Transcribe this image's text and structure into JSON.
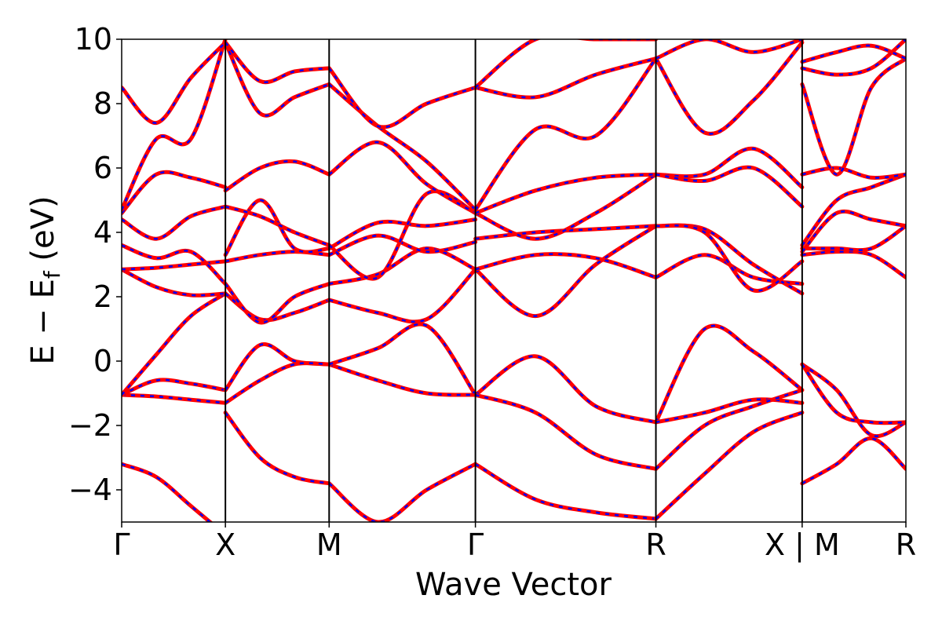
{
  "chart_data": {
    "type": "line",
    "title": "",
    "xlabel": "Wave Vector",
    "ylabel": "E − E",
    "ylabel_subscript": "f",
    "ylabel_unit": " (eV)",
    "ylim": [
      -5,
      10
    ],
    "yticks": [
      -4,
      -2,
      0,
      2,
      4,
      6,
      8,
      10
    ],
    "ytick_labels": [
      "−4",
      "−2",
      "0",
      "2",
      "4",
      "6",
      "8",
      "10"
    ],
    "xlim": [
      0,
      7.56
    ],
    "kpoints": [
      {
        "label": "Γ",
        "x": 0
      },
      {
        "label": "X",
        "x": 1
      },
      {
        "label": "M",
        "x": 2
      },
      {
        "label": "Γ",
        "x": 3.41
      },
      {
        "label": "R",
        "x": 5.15
      },
      {
        "label": "X | M",
        "x": 6.56
      },
      {
        "label": "R",
        "x": 7.56
      }
    ],
    "grid": false,
    "legend": "none",
    "series_styles": [
      {
        "color": "#ff0000",
        "style": "solid"
      },
      {
        "color": "#0000ff",
        "style": "dashed"
      }
    ],
    "segments": [
      {
        "x0": 0,
        "x1": 1,
        "bands": [
          [
            -3.2,
            -3.6,
            -4.5,
            -5.4
          ],
          [
            -1.05,
            -1.1,
            -1.2,
            -1.3
          ],
          [
            -1.05,
            -0.6,
            -0.7,
            -0.9
          ],
          [
            -1.05,
            0.2,
            1.4,
            2.1
          ],
          [
            2.85,
            2.3,
            2.05,
            2.1
          ],
          [
            2.85,
            2.9,
            3.0,
            3.1
          ],
          [
            3.6,
            3.2,
            3.4,
            2.4
          ],
          [
            4.4,
            3.8,
            4.5,
            4.8
          ],
          [
            4.6,
            5.8,
            5.7,
            5.4
          ],
          [
            4.7,
            6.9,
            6.9,
            10.0
          ],
          [
            8.5,
            7.4,
            8.8,
            9.9
          ]
        ]
      },
      {
        "x0": 1,
        "x1": 2,
        "bands": [
          [
            -1.6,
            -3.0,
            -3.6,
            -3.8
          ],
          [
            -0.9,
            0.5,
            0.0,
            -0.1
          ],
          [
            -1.3,
            -0.6,
            -0.1,
            -0.1
          ],
          [
            2.1,
            1.3,
            1.5,
            1.9
          ],
          [
            2.4,
            1.2,
            2.0,
            2.4
          ],
          [
            3.1,
            3.3,
            3.4,
            3.3
          ],
          [
            3.3,
            5.0,
            3.5,
            3.5
          ],
          [
            4.8,
            4.5,
            4.0,
            3.6
          ],
          [
            5.3,
            6.0,
            6.2,
            5.8
          ],
          [
            9.9,
            7.7,
            8.2,
            8.6
          ],
          [
            9.9,
            8.7,
            9.0,
            9.1
          ]
        ]
      },
      {
        "x0": 2,
        "x1": 3.41,
        "bands": [
          [
            -3.8,
            -5.0,
            -4.0,
            -3.2
          ],
          [
            -0.1,
            -0.6,
            -1.0,
            -1.05
          ],
          [
            -0.1,
            0.4,
            1.1,
            -1.05
          ],
          [
            1.9,
            1.5,
            1.3,
            2.85
          ],
          [
            2.4,
            2.7,
            3.5,
            2.85
          ],
          [
            3.3,
            3.9,
            3.4,
            3.7
          ],
          [
            3.5,
            4.3,
            4.2,
            4.4
          ],
          [
            3.6,
            2.6,
            5.2,
            4.6
          ],
          [
            5.8,
            6.8,
            5.5,
            4.6
          ],
          [
            8.6,
            7.3,
            6.2,
            4.7
          ],
          [
            9.1,
            7.3,
            8.0,
            8.5
          ]
        ]
      },
      {
        "x0": 3.41,
        "x1": 5.15,
        "bands": [
          [
            -3.2,
            -4.3,
            -4.7,
            -4.9
          ],
          [
            -1.05,
            0.15,
            -1.4,
            -1.9
          ],
          [
            -1.05,
            -1.6,
            -2.9,
            -3.35
          ],
          [
            2.85,
            1.4,
            3.0,
            4.2
          ],
          [
            2.85,
            3.3,
            3.2,
            2.6
          ],
          [
            3.8,
            4.0,
            4.1,
            4.2
          ],
          [
            4.6,
            3.8,
            4.6,
            5.8
          ],
          [
            4.6,
            5.3,
            5.7,
            5.8
          ],
          [
            4.7,
            7.2,
            7.0,
            9.4
          ],
          [
            8.5,
            8.2,
            8.9,
            9.4
          ],
          [
            8.5,
            10.0,
            10.0,
            10.0
          ]
        ]
      },
      {
        "x0": 5.15,
        "x1": 6.56,
        "bands": [
          [
            -4.9,
            -3.5,
            -2.2,
            -1.6
          ],
          [
            -1.9,
            1.0,
            0.3,
            -0.9
          ],
          [
            -1.9,
            -1.6,
            -1.2,
            -1.3
          ],
          [
            -3.35,
            -2.0,
            -1.4,
            -0.9
          ],
          [
            2.6,
            3.3,
            2.6,
            2.4
          ],
          [
            4.2,
            4.1,
            3.0,
            2.1
          ],
          [
            4.2,
            4.0,
            2.2,
            3.1
          ],
          [
            5.8,
            5.8,
            6.6,
            5.4
          ],
          [
            5.8,
            5.6,
            6.0,
            4.8
          ],
          [
            9.4,
            7.1,
            8.1,
            9.9
          ],
          [
            9.4,
            10.0,
            9.6,
            10.0
          ]
        ]
      },
      {
        "x0": 6.56,
        "x1": 7.56,
        "bands": [
          [
            -3.8,
            -3.2,
            -2.4,
            -3.35
          ],
          [
            -0.1,
            -0.9,
            -2.3,
            -1.9
          ],
          [
            -0.1,
            -1.6,
            -1.9,
            -1.9
          ],
          [
            3.3,
            3.4,
            3.3,
            2.6
          ],
          [
            3.5,
            3.5,
            3.5,
            4.2
          ],
          [
            3.6,
            5.0,
            5.4,
            5.8
          ],
          [
            3.4,
            4.6,
            4.4,
            4.2
          ],
          [
            5.8,
            6.0,
            5.7,
            5.8
          ],
          [
            8.6,
            5.8,
            8.5,
            9.4
          ],
          [
            9.1,
            8.9,
            9.1,
            10.0
          ],
          [
            9.3,
            9.6,
            9.8,
            9.4
          ]
        ]
      }
    ]
  }
}
